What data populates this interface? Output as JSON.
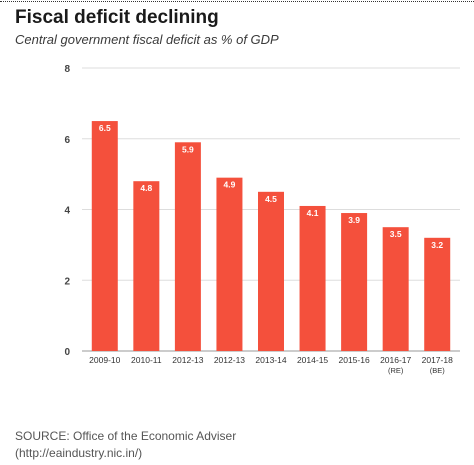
{
  "title": "Fiscal deficit declining",
  "subtitle": "Central government fiscal deficit as % of GDP",
  "source": {
    "line1": "SOURCE: Office of the Economic Adviser",
    "line2": "(http://eaindustry.nic.in/)"
  },
  "colors": {
    "bar": "#f4503c",
    "grid": "#dddddd",
    "text": "#333333"
  },
  "chart_data": {
    "type": "bar",
    "categories": [
      [
        "2009-10"
      ],
      [
        "2010-11"
      ],
      [
        "2012-13"
      ],
      [
        "2012-13"
      ],
      [
        "2013-14"
      ],
      [
        "2014-15"
      ],
      [
        "2015-16"
      ],
      [
        "2016-17",
        "(RE)"
      ],
      [
        "2017-18",
        "(BE)"
      ]
    ],
    "values": [
      6.5,
      4.8,
      5.9,
      4.9,
      4.5,
      4.1,
      3.9,
      3.5,
      3.2
    ],
    "data_labels": [
      "6.5",
      "4.8",
      "5.9",
      "4.9",
      "4.5",
      "4.1",
      "3.9",
      "3.5",
      "3.2"
    ],
    "y_ticks": [
      "0",
      "2",
      "4",
      "6",
      "8"
    ],
    "ylim": [
      0,
      8
    ],
    "grid": true,
    "xlabel": "",
    "ylabel": ""
  }
}
